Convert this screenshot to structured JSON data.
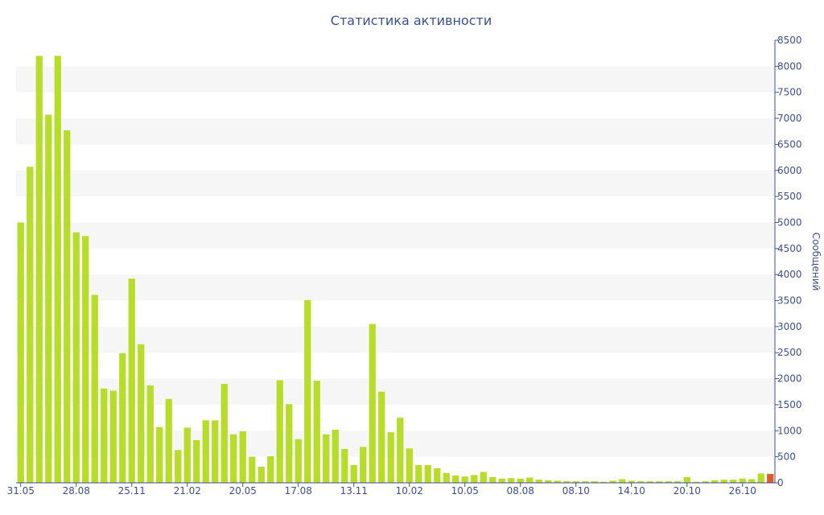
{
  "chart_data": {
    "type": "bar",
    "title": "Статистика активности",
    "xlabel": "",
    "ylabel": "Сообщений",
    "ylim": [
      0,
      8500
    ],
    "y_ticks": [
      0,
      500,
      1000,
      1500,
      2000,
      2500,
      3000,
      3500,
      4000,
      4500,
      5000,
      5500,
      6000,
      6500,
      7000,
      7500,
      8000,
      8500
    ],
    "y_axis_side": "right",
    "grid": "alternating horizontal bands",
    "x_tick_labels": [
      "31.05",
      "28.08",
      "25.11",
      "21.02",
      "20.05",
      "17.08",
      "13.11",
      "10.02",
      "10.05",
      "08.08",
      "08.10",
      "14.10",
      "20.10",
      "26.10"
    ],
    "values": [
      5000,
      6070,
      8200,
      7070,
      8200,
      6770,
      4810,
      4740,
      3610,
      1810,
      1770,
      2490,
      3920,
      2660,
      1870,
      1070,
      1610,
      630,
      1060,
      820,
      1200,
      1200,
      1900,
      930,
      990,
      500,
      310,
      510,
      1970,
      1510,
      840,
      3510,
      1960,
      930,
      1020,
      650,
      340,
      690,
      3050,
      1750,
      970,
      1250,
      660,
      340,
      340,
      280,
      190,
      140,
      120,
      150,
      210,
      110,
      80,
      90,
      80,
      100,
      60,
      50,
      40,
      30,
      30,
      30,
      30,
      20,
      40,
      70,
      40,
      30,
      30,
      30,
      30,
      30,
      110,
      20,
      30,
      50,
      60,
      60,
      80,
      70,
      180,
      170
    ],
    "x_tick_bar_index": [
      0,
      6,
      12,
      18,
      24,
      30,
      36,
      42,
      48,
      54,
      60,
      66,
      72,
      78
    ],
    "highlight_last": true,
    "colors": {
      "bar": "#b8dc2a",
      "bar_last": "#e05a2a",
      "text": "#3d4f8a",
      "band": "#f6f6f6",
      "axis": "#3d4f8a"
    }
  }
}
